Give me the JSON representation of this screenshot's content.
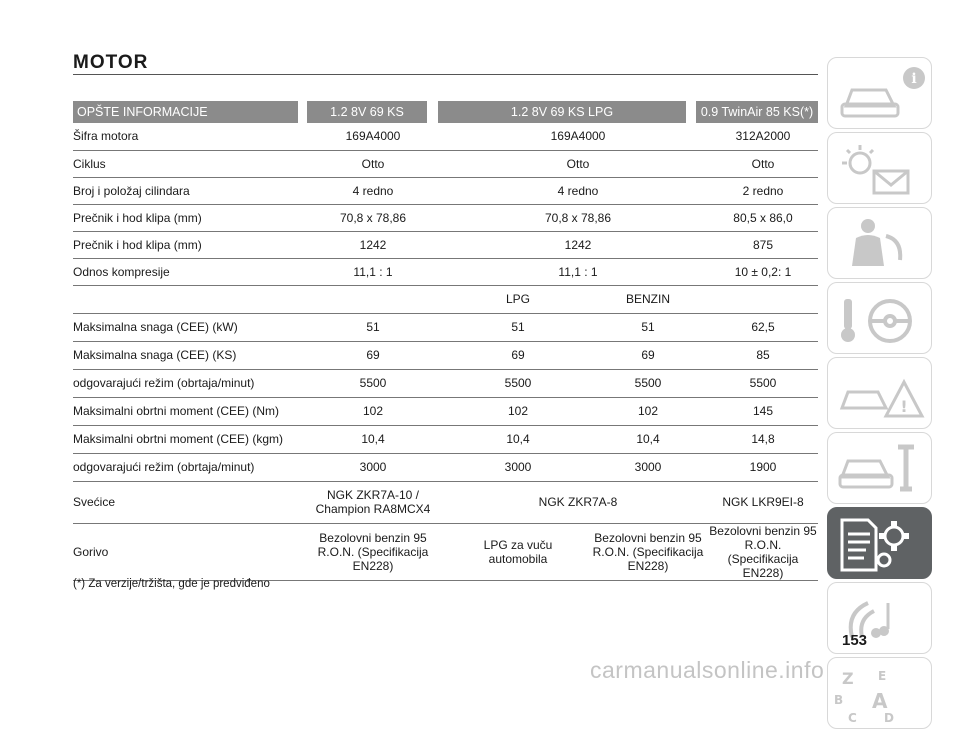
{
  "page": {
    "title": "MOTOR",
    "page_number": "153",
    "watermark": "carmanualsonline.info",
    "footnote": "(*) Za verzije/tržišta, gde je predviđeno"
  },
  "table": {
    "headers": [
      "OPŠTE INFORMACIJE",
      "1.2 8V 69 KS",
      "1.2 8V 69 KS LPG",
      "0.9 TwinAir 85 KS(*)"
    ],
    "header_color": "#8b8b8b",
    "rows_a": [
      {
        "label": "Šifra motora",
        "v1": "169A4000",
        "v2": "169A4000",
        "v3": "312A2000"
      },
      {
        "label": "Ciklus",
        "v1": "Otto",
        "v2": "Otto",
        "v3": "Otto"
      },
      {
        "label": "Broj i položaj cilindara",
        "v1": "4 redno",
        "v2": "4 redno",
        "v3": "2 redno"
      },
      {
        "label": "Prečnik i hod klipa (mm)",
        "v1": "70,8 x 78,86",
        "v2": "70,8 x 78,86",
        "v3": "80,5 x 86,0"
      },
      {
        "label": "Prečnik i hod klipa (mm)",
        "v1": "1242",
        "v2": "1242",
        "v3": "875"
      },
      {
        "label": "Odnos kompresije",
        "v1": "11,1 : 1",
        "v2": "11,1 : 1",
        "v3": "10 ± 0,2: 1"
      }
    ],
    "fuel_sub": {
      "lpg": "LPG",
      "benzin": "BENZIN"
    },
    "rows_b": [
      {
        "label": "Maksimalna snaga (CEE) (kW)",
        "a": "51",
        "b": "51",
        "c": "51",
        "d": "62,5"
      },
      {
        "label": "Maksimalna snaga (CEE) (KS)",
        "a": "69",
        "b": "69",
        "c": "69",
        "d": "85"
      },
      {
        "label": "odgovarajući režim (obrtaja/minut)",
        "a": "5500",
        "b": "5500",
        "c": "5500",
        "d": "5500"
      },
      {
        "label": "Maksimalni obrtni moment (CEE) (Nm)",
        "a": "102",
        "b": "102",
        "c": "102",
        "d": "145"
      },
      {
        "label": "Maksimalni obrtni moment (CEE) (kgm)",
        "a": "10,4",
        "b": "10,4",
        "c": "10,4",
        "d": "14,8"
      },
      {
        "label": "odgovarajući režim (obrtaja/minut)",
        "a": "3000",
        "b": "3000",
        "c": "3000",
        "d": "1900"
      }
    ],
    "spark": {
      "label": "Svećice",
      "v1_line1": "NGK ZKR7A-10 /",
      "v1_line2": "Champion RA8MCX4",
      "v2": "NGK ZKR7A-8",
      "v3": "NGK LKR9EI-8"
    },
    "fuel": {
      "label": "Gorivo",
      "v1": [
        "Bezolovni benzin 95",
        "R.O.N. (Specifikacija",
        "EN228)"
      ],
      "v2": [
        "LPG za vuču",
        "automobila"
      ],
      "v3": [
        "Bezolovni benzin 95",
        "R.O.N. (Specifikacija",
        "EN228)"
      ],
      "v4": [
        "Bezolovni benzin 95",
        "R.O.N. (Specifikacija",
        "EN228)"
      ]
    }
  },
  "sidebar": {
    "tabs": [
      {
        "icon": "car-info-icon"
      },
      {
        "icon": "warning-lights-icon"
      },
      {
        "icon": "seatbelt-safety-icon"
      },
      {
        "icon": "key-steering-icon"
      },
      {
        "icon": "emergency-icon"
      },
      {
        "icon": "maintenance-icon"
      },
      {
        "icon": "technical-data-icon",
        "active": true
      },
      {
        "icon": "multimedia-icon"
      },
      {
        "icon": "index-icon"
      }
    ],
    "active_color": "#5f6264"
  }
}
